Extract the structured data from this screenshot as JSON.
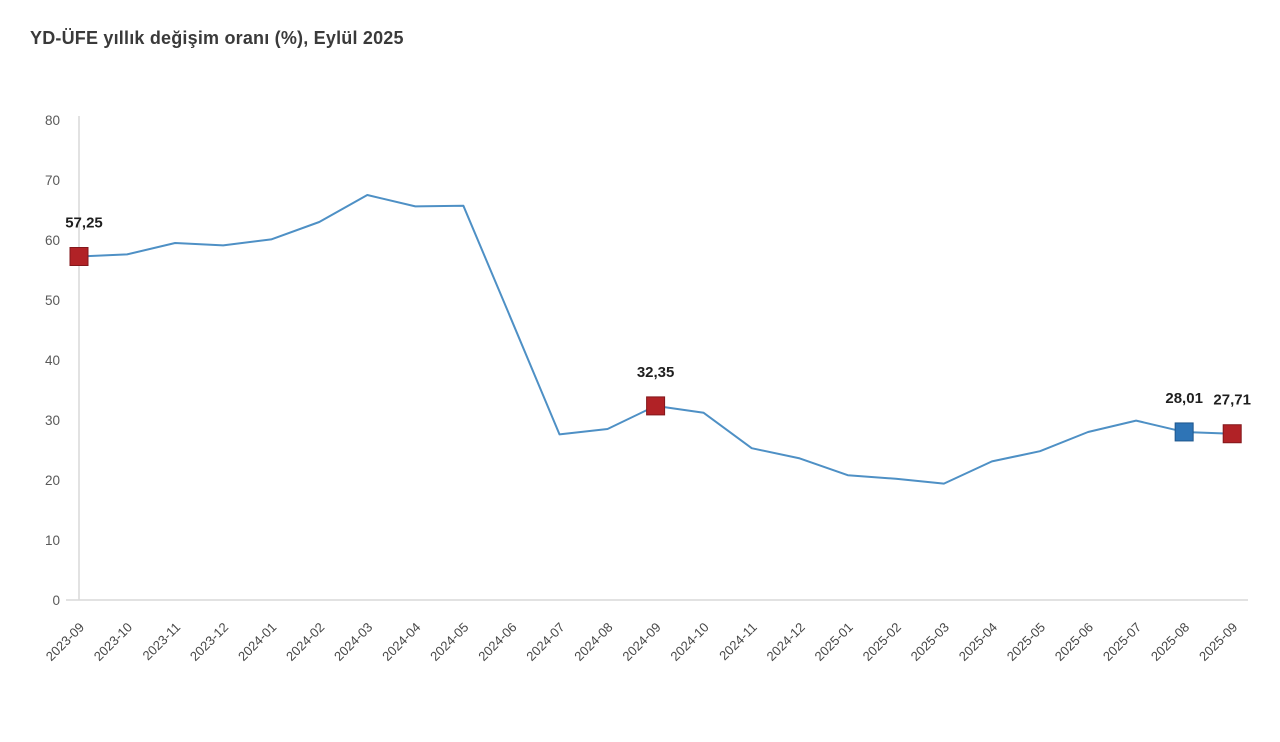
{
  "chart_data": {
    "type": "line",
    "title": "YD-ÜFE yıllık değişim oranı (%), Eylül 2025",
    "xlabel": "",
    "ylabel": "",
    "ylim": [
      0,
      80
    ],
    "y_ticks": [
      0,
      10,
      20,
      30,
      40,
      50,
      60,
      70,
      80
    ],
    "grid": "off",
    "legend": "none",
    "categories": [
      "2023-09",
      "2023-10",
      "2023-11",
      "2023-12",
      "2024-01",
      "2024-02",
      "2024-03",
      "2024-04",
      "2024-05",
      "2024-06",
      "2024-07",
      "2024-08",
      "2024-09",
      "2024-10",
      "2024-11",
      "2024-12",
      "2025-01",
      "2025-02",
      "2025-03",
      "2025-04",
      "2025-05",
      "2025-06",
      "2025-07",
      "2025-08",
      "2025-09"
    ],
    "series": [
      {
        "name": "YD-ÜFE yıllık değişim oranı (%)",
        "values": [
          57.25,
          57.6,
          59.5,
          59.1,
          60.1,
          63.0,
          67.5,
          65.6,
          65.7,
          46.7,
          27.6,
          28.5,
          32.35,
          31.2,
          25.3,
          23.6,
          20.8,
          20.2,
          19.4,
          23.1,
          24.8,
          28.0,
          29.9,
          28.01,
          27.71
        ]
      }
    ],
    "annotations": [
      {
        "category": "2023-09",
        "value": 57.25,
        "label": "57,25",
        "marker": "red"
      },
      {
        "category": "2024-09",
        "value": 32.35,
        "label": "32,35",
        "marker": "red"
      },
      {
        "category": "2025-08",
        "value": 28.01,
        "label": "28,01",
        "marker": "blue"
      },
      {
        "category": "2025-09",
        "value": 27.71,
        "label": "27,71",
        "marker": "red"
      }
    ],
    "colors": {
      "line": "#4e90c5",
      "marker_red": "#b12226",
      "marker_red_stroke": "#83171b",
      "marker_blue": "#2e74b6",
      "marker_blue_stroke": "#1e568c",
      "axis": "#d9d9d9",
      "y_tick_label": "#595959",
      "x_tick_label": "#474747",
      "title": "#3a3a3a",
      "annotation_label": "#1f1f1f"
    }
  }
}
